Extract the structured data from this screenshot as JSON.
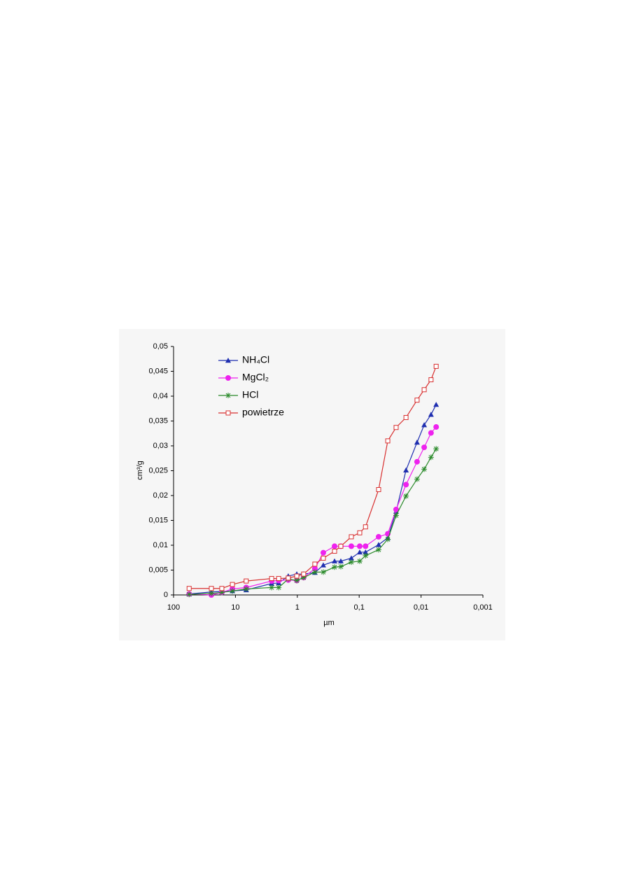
{
  "chart_data": {
    "type": "line",
    "xlabel": "µm",
    "ylabel": "cm³/g",
    "x": [
      56,
      24.5,
      16.6,
      11.2,
      6.7,
      2.6,
      2.0,
      1.4,
      1.02,
      0.79,
      0.52,
      0.38,
      0.25,
      0.198,
      0.134,
      0.098,
      0.079,
      0.0485,
      0.0345,
      0.0253,
      0.0175,
      0.0116,
      0.0089,
      0.0069,
      0.0057
    ],
    "series": [
      {
        "name": "NH₄Cl",
        "color": "#1f2fb0",
        "marker": "triangle",
        "values": [
          0.0002,
          0.0006,
          0.0007,
          0.0008,
          0.001,
          0.0023,
          0.0024,
          0.0038,
          0.0042,
          0.0042,
          0.0045,
          0.006,
          0.0068,
          0.0068,
          0.0074,
          0.0086,
          0.0086,
          0.0101,
          0.0115,
          0.0168,
          0.0251,
          0.0307,
          0.0342,
          0.0363,
          0.0383
        ]
      },
      {
        "name": "MgCl₂",
        "color": "#ee22ee",
        "marker": "diamond",
        "values": [
          0.0002,
          0,
          0.0005,
          0.0012,
          0.0015,
          0.0028,
          0.0029,
          0.003,
          0.0029,
          0.0035,
          0.0053,
          0.0085,
          0.0098,
          0.0098,
          0.0098,
          0.0098,
          0.0098,
          0.0117,
          0.0123,
          0.0172,
          0.0222,
          0.0268,
          0.0297,
          0.0326,
          0.0338
        ]
      },
      {
        "name": "HCl",
        "color": "#2a8a2a",
        "marker": "star",
        "values": [
          0.0001,
          0.0003,
          0.0005,
          0.0008,
          0.0012,
          0.0015,
          0.0015,
          0.0032,
          0.0029,
          0.0035,
          0.0046,
          0.0046,
          0.0056,
          0.0057,
          0.0066,
          0.0068,
          0.0079,
          0.0091,
          0.0112,
          0.016,
          0.0199,
          0.0233,
          0.0253,
          0.0277,
          0.0294
        ]
      },
      {
        "name": "powietrze",
        "color": "#d83030",
        "marker": "square",
        "values": [
          0.0013,
          0.0013,
          0.0013,
          0.0021,
          0.0028,
          0.0033,
          0.0033,
          0.0034,
          0.0038,
          0.0042,
          0.0062,
          0.0074,
          0.0088,
          0.0098,
          0.0117,
          0.0125,
          0.0137,
          0.0212,
          0.031,
          0.0337,
          0.0357,
          0.0392,
          0.0413,
          0.0433,
          0.046
        ]
      }
    ],
    "xlog": true,
    "xlim": [
      100,
      0.001
    ],
    "xticks": [
      100,
      10,
      1,
      {
        "value": 0.1,
        "label": "0,1"
      },
      {
        "value": 0.01,
        "label": "0,01"
      },
      {
        "value": 0.001,
        "label": "0,001"
      }
    ],
    "ylim": [
      0,
      0.05
    ],
    "yticks": [
      0,
      {
        "value": 0.005,
        "label": "0,005"
      },
      {
        "value": 0.01,
        "label": "0,01"
      },
      {
        "value": 0.015,
        "label": "0,015"
      },
      {
        "value": 0.02,
        "label": "0,02"
      },
      {
        "value": 0.025,
        "label": "0,025"
      },
      {
        "value": 0.03,
        "label": "0,03"
      },
      {
        "value": 0.035,
        "label": "0,035"
      },
      {
        "value": 0.04,
        "label": "0,04"
      },
      {
        "value": 0.045,
        "label": "0,045"
      },
      {
        "value": 0.05,
        "label": "0,05"
      }
    ],
    "grid": false
  }
}
